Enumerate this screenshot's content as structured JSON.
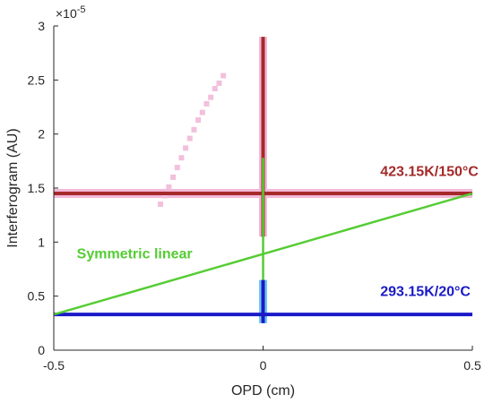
{
  "chart_data": {
    "type": "line",
    "title": "",
    "xlabel": "OPD (cm)",
    "ylabel": "Interferogram (AU)",
    "y_exponent": "×10",
    "y_exponent_power": "-5",
    "xlim": [
      -0.5,
      0.5
    ],
    "ylim": [
      0,
      3
    ],
    "x_ticks": [
      -0.5,
      0,
      0.5
    ],
    "x_tick_labels": [
      "-0.5",
      "0",
      "0.5"
    ],
    "y_ticks": [
      0,
      0.5,
      1,
      1.5,
      2,
      2.5,
      3
    ],
    "y_tick_labels": [
      "0",
      "0.5",
      "1",
      "1.5",
      "2",
      "2.5",
      "3"
    ],
    "grid": false,
    "series": [
      {
        "label": "423.15K/150°C",
        "color": "#a52a2a",
        "highlight_color": "#f2b8d8",
        "baseline": 1.45,
        "centerburst": [
          1.05,
          2.9
        ]
      },
      {
        "color": "#1a1ac8",
        "highlight_color": "#6ec8f0",
        "baseline": 0.33,
        "centerburst": [
          0.25,
          0.65
        ]
      },
      {
        "label": "Symmetric linear",
        "color": "#55cc33",
        "x": [
          -0.5,
          0.5
        ],
        "y": [
          0.33,
          1.45
        ],
        "vertical_x": 0,
        "vertical_range": [
          0.65,
          1.78
        ]
      }
    ],
    "dotted_trace": {
      "color": "#f2c0dc",
      "x": [
        -0.245,
        -0.235,
        -0.225,
        -0.215,
        -0.205,
        -0.195,
        -0.185,
        -0.175,
        -0.165,
        -0.155,
        -0.145,
        -0.135,
        -0.125,
        -0.115,
        -0.105,
        -0.095
      ],
      "y": [
        1.35,
        1.43,
        1.51,
        1.6,
        1.69,
        1.78,
        1.87,
        1.96,
        2.04,
        2.13,
        2.2,
        2.28,
        2.34,
        2.42,
        2.47,
        2.54
      ]
    },
    "annotations": [
      {
        "text": "423.15K/150°C",
        "x": 0.28,
        "y": 1.61,
        "color": "#a52a2a"
      },
      {
        "text": "Symmetric linear",
        "x": -0.445,
        "y": 0.85,
        "color": "#55cc33"
      },
      {
        "text": "293.15K/20°C",
        "x": 0.28,
        "y": 0.5,
        "color": "#1a1ac8"
      }
    ]
  }
}
